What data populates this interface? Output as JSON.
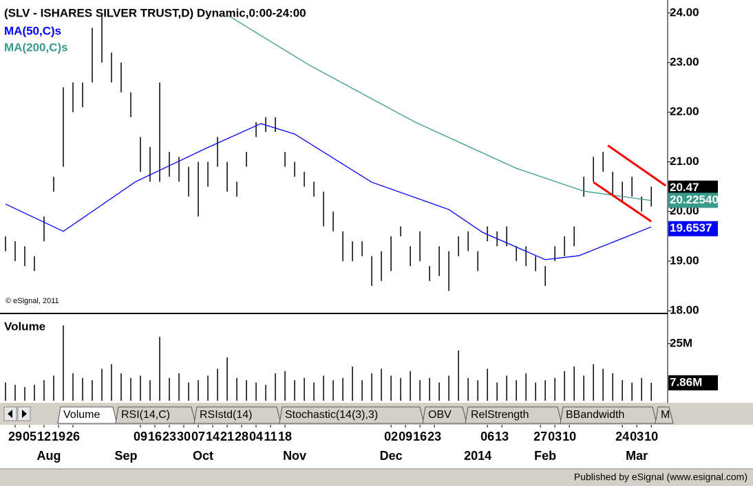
{
  "chart_data": [
    {
      "type": "ohlc",
      "title": "(SLV - ISHARES SILVER TRUST,D) Dynamic,0:00-24:00",
      "annotation": "© eSignal, 2011",
      "color": "#000000",
      "x": [
        0,
        2,
        4,
        6,
        8,
        10,
        12,
        14,
        16,
        18,
        20,
        22,
        24,
        26,
        28,
        30,
        32,
        34,
        36,
        38,
        40,
        42,
        44,
        46,
        48,
        50,
        52,
        54,
        56,
        58,
        60,
        62,
        64,
        66,
        68,
        70,
        72,
        74,
        76,
        78,
        80,
        82,
        84,
        86,
        88,
        90,
        92,
        94,
        96,
        98,
        100,
        102,
        104,
        106,
        108,
        110,
        112,
        114,
        116,
        118,
        120,
        122,
        124,
        126,
        128,
        130,
        132,
        134
      ],
      "high": [
        19.5,
        19.4,
        19.3,
        19.1,
        19.9,
        20.7,
        22.5,
        22.6,
        22.6,
        23.7,
        24.0,
        23.2,
        23.0,
        22.4,
        21.5,
        21.3,
        22.6,
        21.2,
        21.1,
        20.9,
        21.0,
        21.0,
        21.5,
        21.0,
        20.6,
        21.2,
        21.8,
        21.9,
        21.9,
        21.2,
        21.0,
        20.8,
        20.6,
        20.4,
        20.0,
        19.6,
        19.4,
        19.4,
        19.1,
        19.2,
        19.5,
        19.7,
        19.3,
        19.6,
        18.9,
        19.3,
        19.2,
        19.5,
        19.6,
        19.2,
        19.7,
        19.6,
        19.7,
        19.3,
        19.3,
        19.1,
        18.9,
        19.3,
        19.5,
        19.7,
        20.7,
        21.1,
        21.2,
        20.8,
        20.6,
        20.7,
        20.3,
        20.5
      ],
      "low": [
        19.2,
        19.0,
        18.9,
        18.8,
        19.4,
        20.4,
        20.9,
        22.0,
        22.1,
        22.6,
        23.0,
        22.6,
        22.4,
        21.9,
        20.8,
        20.6,
        20.6,
        20.7,
        20.6,
        20.3,
        19.9,
        20.5,
        20.9,
        20.4,
        20.3,
        20.9,
        21.5,
        21.6,
        21.6,
        20.9,
        20.7,
        20.5,
        20.3,
        19.7,
        19.6,
        19.0,
        19.0,
        19.1,
        18.5,
        18.6,
        18.8,
        19.5,
        18.9,
        19.0,
        18.6,
        18.7,
        18.4,
        19.1,
        19.2,
        18.8,
        19.4,
        19.3,
        19.3,
        19.0,
        18.9,
        18.8,
        18.5,
        19.0,
        19.1,
        19.3,
        20.3,
        20.6,
        20.8,
        20.3,
        20.2,
        20.3,
        20.0,
        20.1
      ],
      "xlim": [
        -1.14,
        137.4
      ],
      "ylim": [
        17.96,
        24.26
      ],
      "yticks": [
        {
          "value": 18,
          "label": "18.00"
        },
        {
          "value": 19,
          "label": "19.00"
        },
        {
          "value": 20,
          "label": "20.00"
        },
        {
          "value": 21,
          "label": "21.00"
        },
        {
          "value": 22,
          "label": "22.00"
        },
        {
          "value": 23,
          "label": "23.00"
        },
        {
          "value": 24,
          "label": "24.00"
        }
      ],
      "series": [
        {
          "name": "MA(50,C)s",
          "color": "#0000ff",
          "x": [
            0,
            12,
            27,
            42,
            53,
            60,
            76,
            92,
            99,
            112,
            119,
            134
          ],
          "values": [
            20.15,
            19.6,
            20.6,
            21.29,
            21.77,
            21.56,
            20.59,
            20.04,
            19.58,
            19.03,
            19.11,
            19.69
          ]
        },
        {
          "name": "MA(200,C)s",
          "color": "#3a9a8a",
          "x": [
            46,
            63,
            85,
            106,
            120,
            134
          ],
          "values": [
            23.96,
            22.95,
            21.8,
            20.87,
            20.41,
            20.22
          ]
        }
      ],
      "trendlines": [
        {
          "color": "#ff0000",
          "x": [
            125,
            137
          ],
          "y": [
            21.33,
            20.52
          ]
        },
        {
          "color": "#ff0000",
          "x": [
            122,
            134
          ],
          "y": [
            20.59,
            19.8
          ]
        }
      ],
      "last_values": [
        {
          "value": 20.47,
          "color": "#000000"
        },
        {
          "value": 20.225405,
          "color": "#3a9a8a"
        },
        {
          "value": 19.6537,
          "color": "#0000ff"
        }
      ]
    },
    {
      "type": "volume",
      "title": "Volume",
      "color": "#000000",
      "x": [
        0,
        2,
        4,
        6,
        8,
        10,
        12,
        14,
        16,
        18,
        20,
        22,
        24,
        26,
        28,
        30,
        32,
        34,
        36,
        38,
        40,
        42,
        44,
        46,
        48,
        50,
        52,
        54,
        56,
        58,
        60,
        62,
        64,
        66,
        68,
        70,
        72,
        74,
        76,
        78,
        80,
        82,
        84,
        86,
        88,
        90,
        92,
        94,
        96,
        98,
        100,
        102,
        104,
        106,
        108,
        110,
        112,
        114,
        116,
        118,
        120,
        122,
        124,
        126,
        128,
        130,
        132,
        134
      ],
      "values": [
        8,
        7,
        6,
        7,
        9,
        11,
        33,
        12,
        10,
        9,
        14,
        16,
        12,
        10,
        11,
        9,
        28,
        10,
        12,
        8,
        9,
        11,
        14,
        19,
        10,
        9,
        8,
        7,
        12,
        13,
        9,
        10,
        8,
        11,
        9,
        10,
        15,
        9,
        12,
        14,
        11,
        10,
        13,
        9,
        10,
        8,
        11,
        22,
        10,
        9,
        14,
        8,
        11,
        9,
        12,
        8,
        9,
        10,
        13,
        15,
        11,
        16,
        14,
        12,
        9,
        8,
        10,
        7.86
      ],
      "xlim": [
        -1.14,
        137.4
      ],
      "ylim": [
        0,
        37
      ],
      "yticks": [
        {
          "value": 25,
          "label": "25M"
        }
      ],
      "last_value": {
        "value": 7.86,
        "label": "7.86M"
      }
    }
  ],
  "x_axis": {
    "date_ticks": [
      {
        "value": 2,
        "label": "29"
      },
      {
        "value": 5,
        "label": "05"
      },
      {
        "value": 8,
        "label": "12"
      },
      {
        "value": 11,
        "label": "19"
      },
      {
        "value": 14,
        "label": "26"
      },
      {
        "value": 28,
        "label": "09"
      },
      {
        "value": 31,
        "label": "16"
      },
      {
        "value": 34,
        "label": "23"
      },
      {
        "value": 37,
        "label": "30"
      },
      {
        "value": 40,
        "label": "07"
      },
      {
        "value": 43,
        "label": "14"
      },
      {
        "value": 46,
        "label": "21"
      },
      {
        "value": 49,
        "label": "28"
      },
      {
        "value": 52,
        "label": "04"
      },
      {
        "value": 55,
        "label": "11"
      },
      {
        "value": 58,
        "label": "18"
      },
      {
        "value": 80,
        "label": "02"
      },
      {
        "value": 83,
        "label": "09"
      },
      {
        "value": 86,
        "label": "16"
      },
      {
        "value": 89,
        "label": "23"
      },
      {
        "value": 100,
        "label": "06"
      },
      {
        "value": 103,
        "label": "13"
      },
      {
        "value": 111,
        "label": "27"
      },
      {
        "value": 114,
        "label": "03"
      },
      {
        "value": 117,
        "label": "10"
      },
      {
        "value": 128,
        "label": "24"
      },
      {
        "value": 131,
        "label": "03"
      },
      {
        "value": 134,
        "label": "10"
      }
    ],
    "month_ticks": [
      {
        "value": 9,
        "label": "Aug"
      },
      {
        "value": 25,
        "label": "Sep"
      },
      {
        "value": 41,
        "label": "Oct"
      },
      {
        "value": 60,
        "label": "Nov"
      },
      {
        "value": 80,
        "label": "Dec"
      },
      {
        "value": 98,
        "label": "2014"
      },
      {
        "value": 112,
        "label": "Feb"
      },
      {
        "value": 131,
        "label": "Mar"
      }
    ]
  },
  "tabs": [
    "Volume",
    "RSI(14,C)",
    "RSIstd(14)",
    "Stochastic(14(3),3)",
    "OBV",
    "RelStrength",
    "BBandwidth",
    "M"
  ],
  "footer": "Published by eSignal (www.esignal.com)"
}
